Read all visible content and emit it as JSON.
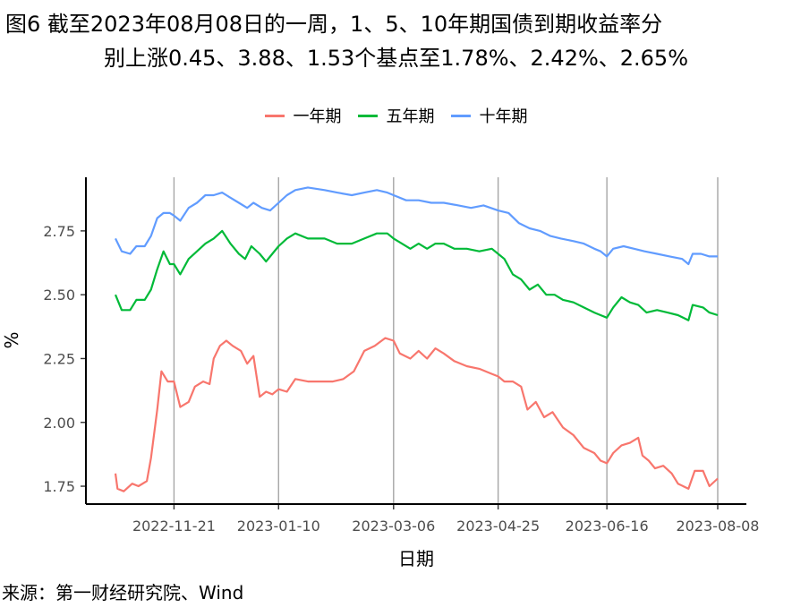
{
  "title": {
    "line1": "图6  截至2023年08月08日的一周，1、5、10年期国债到期收益率分",
    "line2": "别上涨0.45、3.88、1.53个基点至1.78%、2.42%、2.65%"
  },
  "source": "来源：第一财经研究院、Wind",
  "chart_data": {
    "type": "line",
    "xlabel": "日期",
    "ylabel": "%",
    "ylim": [
      1.68,
      2.96
    ],
    "yticks": [
      1.75,
      2.0,
      2.25,
      2.5,
      2.75
    ],
    "ytick_labels": [
      "1.75",
      "2.00",
      "2.25",
      "2.50",
      "2.75"
    ],
    "x_start": "2022-10-24",
    "x_end": "2023-08-08",
    "xticks": [
      "2022-11-21",
      "2023-01-10",
      "2023-03-06",
      "2023-04-25",
      "2023-06-16",
      "2023-08-08"
    ],
    "grid": "vertical major lines at x ticks",
    "legend_position": "top",
    "series": [
      {
        "name": "一年期",
        "color": "#F8766D",
        "points": [
          [
            "2022-10-24",
            1.8
          ],
          [
            "2022-10-25",
            1.74
          ],
          [
            "2022-10-28",
            1.73
          ],
          [
            "2022-11-01",
            1.76
          ],
          [
            "2022-11-04",
            1.75
          ],
          [
            "2022-11-08",
            1.77
          ],
          [
            "2022-11-10",
            1.86
          ],
          [
            "2022-11-13",
            2.05
          ],
          [
            "2022-11-15",
            2.2
          ],
          [
            "2022-11-18",
            2.16
          ],
          [
            "2022-11-21",
            2.16
          ],
          [
            "2022-11-24",
            2.06
          ],
          [
            "2022-11-28",
            2.08
          ],
          [
            "2022-12-01",
            2.14
          ],
          [
            "2022-12-05",
            2.16
          ],
          [
            "2022-12-08",
            2.15
          ],
          [
            "2022-12-10",
            2.25
          ],
          [
            "2022-12-13",
            2.3
          ],
          [
            "2022-12-16",
            2.32
          ],
          [
            "2022-12-19",
            2.3
          ],
          [
            "2022-12-23",
            2.28
          ],
          [
            "2022-12-26",
            2.23
          ],
          [
            "2022-12-29",
            2.26
          ],
          [
            "2023-01-01",
            2.1
          ],
          [
            "2023-01-04",
            2.12
          ],
          [
            "2023-01-07",
            2.11
          ],
          [
            "2023-01-10",
            2.13
          ],
          [
            "2023-01-14",
            2.12
          ],
          [
            "2023-01-18",
            2.17
          ],
          [
            "2023-01-24",
            2.16
          ],
          [
            "2023-01-30",
            2.16
          ],
          [
            "2023-02-05",
            2.16
          ],
          [
            "2023-02-10",
            2.17
          ],
          [
            "2023-02-15",
            2.2
          ],
          [
            "2023-02-20",
            2.28
          ],
          [
            "2023-02-25",
            2.3
          ],
          [
            "2023-03-02",
            2.33
          ],
          [
            "2023-03-06",
            2.32
          ],
          [
            "2023-03-09",
            2.27
          ],
          [
            "2023-03-14",
            2.25
          ],
          [
            "2023-03-18",
            2.28
          ],
          [
            "2023-03-22",
            2.25
          ],
          [
            "2023-03-26",
            2.29
          ],
          [
            "2023-03-30",
            2.27
          ],
          [
            "2023-04-04",
            2.24
          ],
          [
            "2023-04-10",
            2.22
          ],
          [
            "2023-04-16",
            2.21
          ],
          [
            "2023-04-22",
            2.19
          ],
          [
            "2023-04-25",
            2.18
          ],
          [
            "2023-04-28",
            2.16
          ],
          [
            "2023-05-02",
            2.16
          ],
          [
            "2023-05-06",
            2.14
          ],
          [
            "2023-05-09",
            2.05
          ],
          [
            "2023-05-13",
            2.08
          ],
          [
            "2023-05-17",
            2.02
          ],
          [
            "2023-05-21",
            2.04
          ],
          [
            "2023-05-26",
            1.98
          ],
          [
            "2023-05-31",
            1.95
          ],
          [
            "2023-06-05",
            1.9
          ],
          [
            "2023-06-10",
            1.88
          ],
          [
            "2023-06-13",
            1.85
          ],
          [
            "2023-06-16",
            1.84
          ],
          [
            "2023-06-19",
            1.88
          ],
          [
            "2023-06-23",
            1.91
          ],
          [
            "2023-06-27",
            1.92
          ],
          [
            "2023-07-01",
            1.94
          ],
          [
            "2023-07-03",
            1.87
          ],
          [
            "2023-07-06",
            1.85
          ],
          [
            "2023-07-09",
            1.82
          ],
          [
            "2023-07-13",
            1.83
          ],
          [
            "2023-07-17",
            1.8
          ],
          [
            "2023-07-20",
            1.76
          ],
          [
            "2023-07-25",
            1.74
          ],
          [
            "2023-07-28",
            1.81
          ],
          [
            "2023-08-01",
            1.81
          ],
          [
            "2023-08-04",
            1.75
          ],
          [
            "2023-08-08",
            1.78
          ]
        ]
      },
      {
        "name": "五年期",
        "color": "#00BA38",
        "points": [
          [
            "2022-10-24",
            2.5
          ],
          [
            "2022-10-27",
            2.44
          ],
          [
            "2022-10-31",
            2.44
          ],
          [
            "2022-11-03",
            2.48
          ],
          [
            "2022-11-07",
            2.48
          ],
          [
            "2022-11-10",
            2.52
          ],
          [
            "2022-11-13",
            2.6
          ],
          [
            "2022-11-16",
            2.67
          ],
          [
            "2022-11-19",
            2.62
          ],
          [
            "2022-11-21",
            2.62
          ],
          [
            "2022-11-24",
            2.58
          ],
          [
            "2022-11-28",
            2.64
          ],
          [
            "2022-12-02",
            2.67
          ],
          [
            "2022-12-06",
            2.7
          ],
          [
            "2022-12-10",
            2.72
          ],
          [
            "2022-12-14",
            2.75
          ],
          [
            "2022-12-18",
            2.7
          ],
          [
            "2022-12-22",
            2.66
          ],
          [
            "2022-12-25",
            2.64
          ],
          [
            "2022-12-28",
            2.69
          ],
          [
            "2023-01-01",
            2.66
          ],
          [
            "2023-01-04",
            2.63
          ],
          [
            "2023-01-07",
            2.66
          ],
          [
            "2023-01-10",
            2.69
          ],
          [
            "2023-01-14",
            2.72
          ],
          [
            "2023-01-18",
            2.74
          ],
          [
            "2023-01-24",
            2.72
          ],
          [
            "2023-02-01",
            2.72
          ],
          [
            "2023-02-07",
            2.7
          ],
          [
            "2023-02-14",
            2.7
          ],
          [
            "2023-02-20",
            2.72
          ],
          [
            "2023-02-26",
            2.74
          ],
          [
            "2023-03-03",
            2.74
          ],
          [
            "2023-03-06",
            2.72
          ],
          [
            "2023-03-10",
            2.7
          ],
          [
            "2023-03-14",
            2.68
          ],
          [
            "2023-03-18",
            2.7
          ],
          [
            "2023-03-22",
            2.68
          ],
          [
            "2023-03-26",
            2.7
          ],
          [
            "2023-03-30",
            2.7
          ],
          [
            "2023-04-04",
            2.68
          ],
          [
            "2023-04-10",
            2.68
          ],
          [
            "2023-04-16",
            2.67
          ],
          [
            "2023-04-22",
            2.68
          ],
          [
            "2023-04-25",
            2.66
          ],
          [
            "2023-04-28",
            2.64
          ],
          [
            "2023-05-02",
            2.58
          ],
          [
            "2023-05-06",
            2.56
          ],
          [
            "2023-05-10",
            2.52
          ],
          [
            "2023-05-14",
            2.54
          ],
          [
            "2023-05-18",
            2.5
          ],
          [
            "2023-05-22",
            2.5
          ],
          [
            "2023-05-26",
            2.48
          ],
          [
            "2023-05-31",
            2.47
          ],
          [
            "2023-06-05",
            2.45
          ],
          [
            "2023-06-10",
            2.43
          ],
          [
            "2023-06-13",
            2.42
          ],
          [
            "2023-06-16",
            2.41
          ],
          [
            "2023-06-19",
            2.45
          ],
          [
            "2023-06-23",
            2.49
          ],
          [
            "2023-06-27",
            2.47
          ],
          [
            "2023-07-01",
            2.46
          ],
          [
            "2023-07-05",
            2.43
          ],
          [
            "2023-07-10",
            2.44
          ],
          [
            "2023-07-15",
            2.43
          ],
          [
            "2023-07-20",
            2.42
          ],
          [
            "2023-07-25",
            2.4
          ],
          [
            "2023-07-27",
            2.46
          ],
          [
            "2023-08-01",
            2.45
          ],
          [
            "2023-08-04",
            2.43
          ],
          [
            "2023-08-08",
            2.42
          ]
        ]
      },
      {
        "name": "十年期",
        "color": "#619CFF",
        "points": [
          [
            "2022-10-24",
            2.72
          ],
          [
            "2022-10-27",
            2.67
          ],
          [
            "2022-10-31",
            2.66
          ],
          [
            "2022-11-03",
            2.69
          ],
          [
            "2022-11-07",
            2.69
          ],
          [
            "2022-11-10",
            2.73
          ],
          [
            "2022-11-13",
            2.8
          ],
          [
            "2022-11-16",
            2.82
          ],
          [
            "2022-11-19",
            2.82
          ],
          [
            "2022-11-21",
            2.81
          ],
          [
            "2022-11-24",
            2.79
          ],
          [
            "2022-11-28",
            2.84
          ],
          [
            "2022-12-02",
            2.86
          ],
          [
            "2022-12-06",
            2.89
          ],
          [
            "2022-12-10",
            2.89
          ],
          [
            "2022-12-14",
            2.9
          ],
          [
            "2022-12-18",
            2.88
          ],
          [
            "2022-12-22",
            2.86
          ],
          [
            "2022-12-26",
            2.84
          ],
          [
            "2022-12-29",
            2.86
          ],
          [
            "2023-01-02",
            2.84
          ],
          [
            "2023-01-06",
            2.83
          ],
          [
            "2023-01-10",
            2.86
          ],
          [
            "2023-01-14",
            2.89
          ],
          [
            "2023-01-18",
            2.91
          ],
          [
            "2023-01-24",
            2.92
          ],
          [
            "2023-02-01",
            2.91
          ],
          [
            "2023-02-07",
            2.9
          ],
          [
            "2023-02-14",
            2.89
          ],
          [
            "2023-02-20",
            2.9
          ],
          [
            "2023-02-26",
            2.91
          ],
          [
            "2023-03-03",
            2.9
          ],
          [
            "2023-03-06",
            2.89
          ],
          [
            "2023-03-12",
            2.87
          ],
          [
            "2023-03-18",
            2.87
          ],
          [
            "2023-03-24",
            2.86
          ],
          [
            "2023-03-30",
            2.86
          ],
          [
            "2023-04-06",
            2.85
          ],
          [
            "2023-04-12",
            2.84
          ],
          [
            "2023-04-18",
            2.85
          ],
          [
            "2023-04-25",
            2.83
          ],
          [
            "2023-04-30",
            2.82
          ],
          [
            "2023-05-05",
            2.78
          ],
          [
            "2023-05-10",
            2.76
          ],
          [
            "2023-05-15",
            2.75
          ],
          [
            "2023-05-20",
            2.73
          ],
          [
            "2023-05-25",
            2.72
          ],
          [
            "2023-05-31",
            2.71
          ],
          [
            "2023-06-05",
            2.7
          ],
          [
            "2023-06-10",
            2.68
          ],
          [
            "2023-06-13",
            2.67
          ],
          [
            "2023-06-16",
            2.65
          ],
          [
            "2023-06-19",
            2.68
          ],
          [
            "2023-06-24",
            2.69
          ],
          [
            "2023-06-29",
            2.68
          ],
          [
            "2023-07-04",
            2.67
          ],
          [
            "2023-07-10",
            2.66
          ],
          [
            "2023-07-16",
            2.65
          ],
          [
            "2023-07-22",
            2.64
          ],
          [
            "2023-07-25",
            2.62
          ],
          [
            "2023-07-27",
            2.66
          ],
          [
            "2023-07-31",
            2.66
          ],
          [
            "2023-08-04",
            2.65
          ],
          [
            "2023-08-08",
            2.65
          ]
        ]
      }
    ]
  }
}
